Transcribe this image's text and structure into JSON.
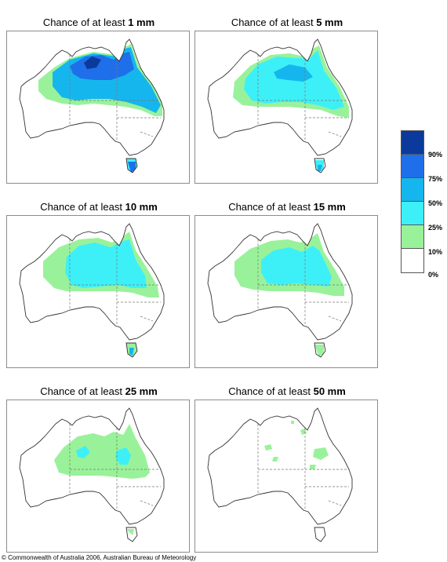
{
  "panels": [
    {
      "title_prefix": "Chance of at least ",
      "title_value": "1 mm"
    },
    {
      "title_prefix": "Chance of at least ",
      "title_value": "5 mm"
    },
    {
      "title_prefix": "Chance of at least ",
      "title_value": "10 mm"
    },
    {
      "title_prefix": "Chance of at least ",
      "title_value": "15 mm"
    },
    {
      "title_prefix": "Chance of at least ",
      "title_value": "25 mm"
    },
    {
      "title_prefix": "Chance of at least ",
      "title_value": "50 mm"
    }
  ],
  "legend": {
    "labels": [
      "90%",
      "75%",
      "50%",
      "25%",
      "10%",
      "0%"
    ],
    "colors": [
      "#0b3a9c",
      "#1f6fea",
      "#15b6ee",
      "#3df0f7",
      "#99f29a",
      "#ffffff"
    ]
  },
  "copyright": "© Commonwealth of Australia 2006, Australian Bureau of Meteorology"
}
